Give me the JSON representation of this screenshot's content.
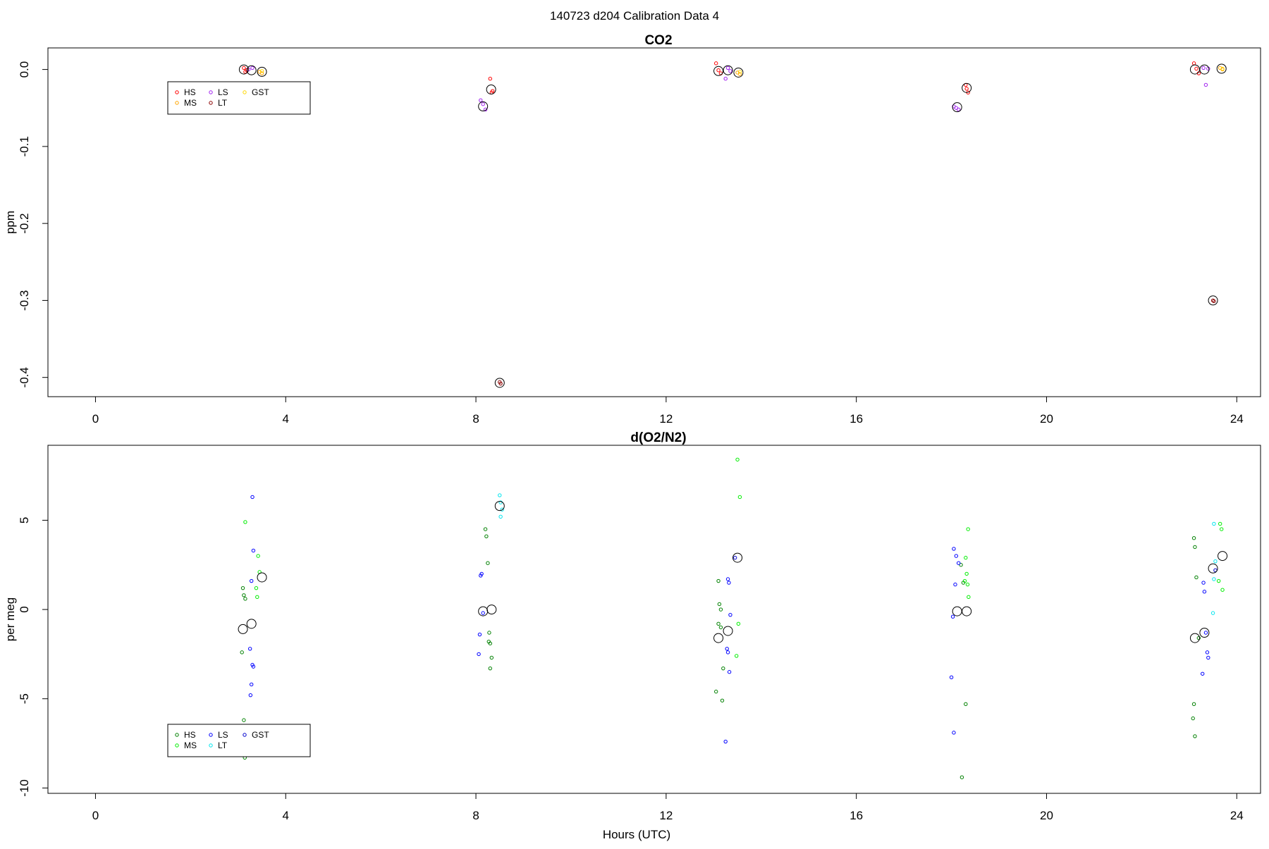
{
  "suptitle": "140723   d204   Calibration Data 4",
  "x_axis_label": "Hours (UTC)",
  "colors": {
    "co2": {
      "HS": "#ff0000",
      "MS": "#ffa500",
      "LS": "#a020f0",
      "LT": "#8b0000",
      "GST": "#ffd700"
    },
    "o2": {
      "HS": "#008000",
      "MS": "#00ee00",
      "LS": "#0000ff",
      "LT": "#00e5ee",
      "GST": "#0000cd"
    },
    "mean_marker": "#000000"
  },
  "chart_data": [
    {
      "type": "scatter",
      "title": "CO2",
      "xlabel": "",
      "ylabel": "ppm",
      "xlim": [
        -1.0,
        24.5
      ],
      "ylim": [
        -0.425,
        0.028
      ],
      "xticks": [
        0,
        4,
        8,
        12,
        16,
        20,
        24
      ],
      "yticks": [
        0.0,
        -0.1,
        -0.2,
        -0.3,
        -0.4
      ],
      "ytick_labels": [
        "0.0",
        "-0.1",
        "-0.2",
        "-0.3",
        "-0.4"
      ],
      "legend": {
        "position": "top-left",
        "entries": [
          "HS",
          "LS",
          "GST",
          "MS",
          "LT"
        ]
      },
      "series": [
        {
          "name": "HS",
          "points": [
            [
              3.12,
              0.002
            ],
            [
              3.15,
              -0.003
            ],
            [
              3.18,
              -0.001
            ],
            [
              8.3,
              -0.012
            ],
            [
              8.35,
              -0.028
            ],
            [
              8.33,
              -0.03
            ],
            [
              13.05,
              0.008
            ],
            [
              13.15,
              -0.005
            ],
            [
              13.1,
              -0.001
            ],
            [
              18.3,
              -0.02
            ],
            [
              18.35,
              -0.03
            ],
            [
              18.32,
              -0.025
            ],
            [
              23.1,
              0.008
            ],
            [
              23.2,
              -0.005
            ],
            [
              23.15,
              0.001
            ]
          ]
        },
        {
          "name": "MS",
          "points": [
            [
              3.45,
              -0.003
            ],
            [
              3.5,
              -0.005
            ],
            [
              13.5,
              -0.004
            ],
            [
              13.55,
              -0.006
            ],
            [
              23.65,
              0.002
            ],
            [
              23.7,
              0.0
            ]
          ]
        },
        {
          "name": "LS",
          "points": [
            [
              3.22,
              0.0
            ],
            [
              3.25,
              -0.018
            ],
            [
              3.3,
              0.002
            ],
            [
              8.1,
              -0.04
            ],
            [
              8.15,
              -0.045
            ],
            [
              8.2,
              -0.052
            ],
            [
              13.25,
              -0.012
            ],
            [
              13.3,
              0.002
            ],
            [
              13.35,
              -0.002
            ],
            [
              18.05,
              -0.048
            ],
            [
              18.1,
              -0.05
            ],
            [
              18.15,
              -0.052
            ],
            [
              23.3,
              0.002
            ],
            [
              23.35,
              -0.02
            ],
            [
              23.4,
              0.001
            ]
          ]
        },
        {
          "name": "LT",
          "points": [
            [
              8.5,
              -0.406
            ],
            [
              8.52,
              -0.408
            ],
            [
              23.5,
              -0.3
            ],
            [
              23.52,
              -0.301
            ]
          ]
        },
        {
          "name": "GST",
          "points": [
            [
              3.5,
              -0.002
            ],
            [
              13.55,
              -0.003
            ],
            [
              23.7,
              0.001
            ]
          ]
        }
      ],
      "means": [
        [
          3.12,
          -0.0
        ],
        [
          3.28,
          -0.001
        ],
        [
          3.5,
          -0.003
        ],
        [
          8.15,
          -0.048
        ],
        [
          8.32,
          -0.026
        ],
        [
          8.5,
          -0.407
        ],
        [
          13.1,
          -0.002
        ],
        [
          13.3,
          -0.001
        ],
        [
          13.52,
          -0.004
        ],
        [
          18.12,
          -0.049
        ],
        [
          18.32,
          -0.024
        ],
        [
          23.12,
          0.0
        ],
        [
          23.32,
          0.0
        ],
        [
          23.5,
          -0.3
        ],
        [
          23.68,
          0.001
        ]
      ]
    },
    {
      "type": "scatter",
      "title": "d(O2/N2)",
      "xlabel": "Hours (UTC)",
      "ylabel": "per meg",
      "xlim": [
        -1.0,
        24.5
      ],
      "ylim": [
        -10.3,
        9.2
      ],
      "xticks": [
        0,
        4,
        8,
        12,
        16,
        20,
        24
      ],
      "yticks": [
        5,
        0,
        -5,
        -10
      ],
      "ytick_labels": [
        "5",
        "0",
        "-5",
        "-10"
      ],
      "legend": {
        "position": "bottom-left",
        "entries": [
          "HS",
          "LS",
          "GST",
          "MS",
          "LT"
        ]
      },
      "series": [
        {
          "name": "HS",
          "points": [
            [
              3.1,
              1.2
            ],
            [
              3.12,
              0.8
            ],
            [
              3.15,
              0.6
            ],
            [
              3.08,
              -2.4
            ],
            [
              3.12,
              -6.2
            ],
            [
              3.14,
              -8.3
            ],
            [
              8.2,
              4.5
            ],
            [
              8.22,
              4.1
            ],
            [
              8.25,
              2.6
            ],
            [
              8.28,
              -1.3
            ],
            [
              8.3,
              -1.9
            ],
            [
              8.27,
              -1.8
            ],
            [
              8.33,
              -2.7
            ],
            [
              8.3,
              -3.3
            ],
            [
              13.1,
              1.6
            ],
            [
              13.12,
              0.3
            ],
            [
              13.15,
              0.0
            ],
            [
              13.1,
              -0.8
            ],
            [
              13.15,
              -1.0
            ],
            [
              13.2,
              -3.3
            ],
            [
              13.05,
              -4.6
            ],
            [
              13.18,
              -5.1
            ],
            [
              18.2,
              2.5
            ],
            [
              18.25,
              1.5
            ],
            [
              18.3,
              -5.3
            ],
            [
              18.22,
              -9.4
            ],
            [
              23.1,
              4.0
            ],
            [
              23.12,
              3.5
            ],
            [
              23.15,
              1.8
            ],
            [
              23.2,
              -1.6
            ],
            [
              23.1,
              -5.3
            ],
            [
              23.08,
              -6.1
            ],
            [
              23.12,
              -7.1
            ]
          ]
        },
        {
          "name": "MS",
          "points": [
            [
              3.15,
              4.9
            ],
            [
              3.42,
              3.0
            ],
            [
              3.45,
              2.1
            ],
            [
              3.38,
              1.2
            ],
            [
              3.4,
              0.7
            ],
            [
              13.5,
              8.4
            ],
            [
              13.55,
              6.3
            ],
            [
              13.52,
              -0.8
            ],
            [
              13.48,
              -2.6
            ],
            [
              18.35,
              4.5
            ],
            [
              18.3,
              2.9
            ],
            [
              18.32,
              2.0
            ],
            [
              18.34,
              1.4
            ],
            [
              18.36,
              0.7
            ],
            [
              18.28,
              1.6
            ],
            [
              23.65,
              4.8
            ],
            [
              23.68,
              4.5
            ],
            [
              23.7,
              1.1
            ],
            [
              23.62,
              1.6
            ]
          ]
        },
        {
          "name": "LS",
          "points": [
            [
              3.3,
              6.3
            ],
            [
              3.32,
              3.3
            ],
            [
              3.28,
              1.6
            ],
            [
              3.25,
              -2.2
            ],
            [
              3.3,
              -3.1
            ],
            [
              3.32,
              -3.2
            ],
            [
              3.28,
              -4.2
            ],
            [
              3.26,
              -4.8
            ],
            [
              8.1,
              1.9
            ],
            [
              8.12,
              2.0
            ],
            [
              8.08,
              -1.4
            ],
            [
              8.06,
              -2.5
            ],
            [
              8.15,
              -0.2
            ],
            [
              13.3,
              1.7
            ],
            [
              13.32,
              1.5
            ],
            [
              13.35,
              -0.3
            ],
            [
              13.28,
              -2.2
            ],
            [
              13.3,
              -2.4
            ],
            [
              13.33,
              -3.5
            ],
            [
              13.25,
              -7.4
            ],
            [
              18.05,
              3.4
            ],
            [
              18.1,
              3.0
            ],
            [
              18.15,
              2.6
            ],
            [
              18.08,
              1.4
            ],
            [
              18.03,
              -0.4
            ],
            [
              18.0,
              -3.8
            ],
            [
              18.05,
              -6.9
            ],
            [
              23.3,
              1.5
            ],
            [
              23.32,
              1.0
            ],
            [
              23.35,
              -1.3
            ],
            [
              23.38,
              -2.4
            ],
            [
              23.4,
              -2.7
            ],
            [
              23.28,
              -3.6
            ]
          ]
        },
        {
          "name": "LT",
          "points": [
            [
              8.5,
              6.4
            ],
            [
              8.52,
              6.0
            ],
            [
              8.55,
              5.6
            ],
            [
              8.52,
              5.2
            ],
            [
              23.52,
              4.8
            ],
            [
              23.55,
              2.7
            ],
            [
              23.52,
              1.7
            ],
            [
              23.5,
              -0.2
            ]
          ]
        },
        {
          "name": "GST",
          "points": [
            [
              13.45,
              2.9
            ],
            [
              23.55,
              2.2
            ]
          ]
        }
      ],
      "means": [
        [
          3.1,
          -1.1
        ],
        [
          3.28,
          -0.8
        ],
        [
          3.5,
          1.8
        ],
        [
          8.15,
          -0.1
        ],
        [
          8.33,
          0.0
        ],
        [
          8.5,
          5.8
        ],
        [
          13.1,
          -1.6
        ],
        [
          13.3,
          -1.2
        ],
        [
          13.5,
          2.9
        ],
        [
          18.12,
          -0.1
        ],
        [
          18.32,
          -0.1
        ],
        [
          23.12,
          -1.6
        ],
        [
          23.32,
          -1.3
        ],
        [
          23.5,
          2.3
        ],
        [
          23.7,
          3.0
        ]
      ]
    }
  ]
}
